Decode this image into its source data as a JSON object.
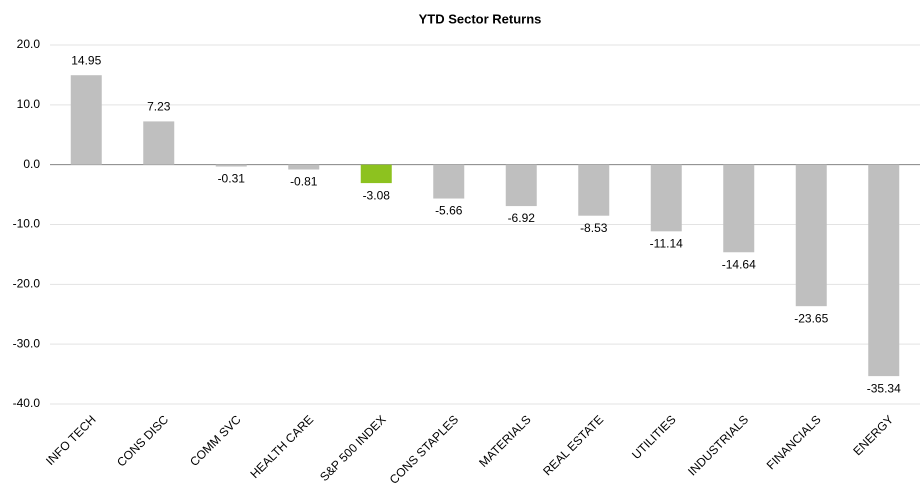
{
  "chart_data": {
    "type": "bar",
    "title": "YTD Sector Returns",
    "categories": [
      "INFO TECH",
      "CONS DISC",
      "COMM SVC",
      "HEALTH CARE",
      "S&P 500 INDEX",
      "CONS STAPLES",
      "MATERIALS",
      "REAL ESTATE",
      "UTILITIES",
      "INDUSTRIALS",
      "FINANCIALS",
      "ENERGY"
    ],
    "values": [
      14.95,
      7.23,
      -0.31,
      -0.81,
      -3.08,
      -5.66,
      -6.92,
      -8.53,
      -11.14,
      -14.64,
      -23.65,
      -35.34
    ],
    "colors": [
      "#bfbfbf",
      "#bfbfbf",
      "#bfbfbf",
      "#bfbfbf",
      "#8dc21f",
      "#bfbfbf",
      "#bfbfbf",
      "#bfbfbf",
      "#bfbfbf",
      "#bfbfbf",
      "#bfbfbf",
      "#bfbfbf"
    ],
    "ylim": [
      -40,
      20
    ],
    "yticks": [
      {
        "value": -40,
        "label": "-40.0"
      },
      {
        "value": -30,
        "label": "-30.0"
      },
      {
        "value": -20,
        "label": "-20.0"
      },
      {
        "value": -10,
        "label": "-10.0"
      },
      {
        "value": 0,
        "label": "0.0"
      },
      {
        "value": 10,
        "label": "10.0"
      },
      {
        "value": 20,
        "label": "20.0"
      }
    ],
    "grid": true
  }
}
